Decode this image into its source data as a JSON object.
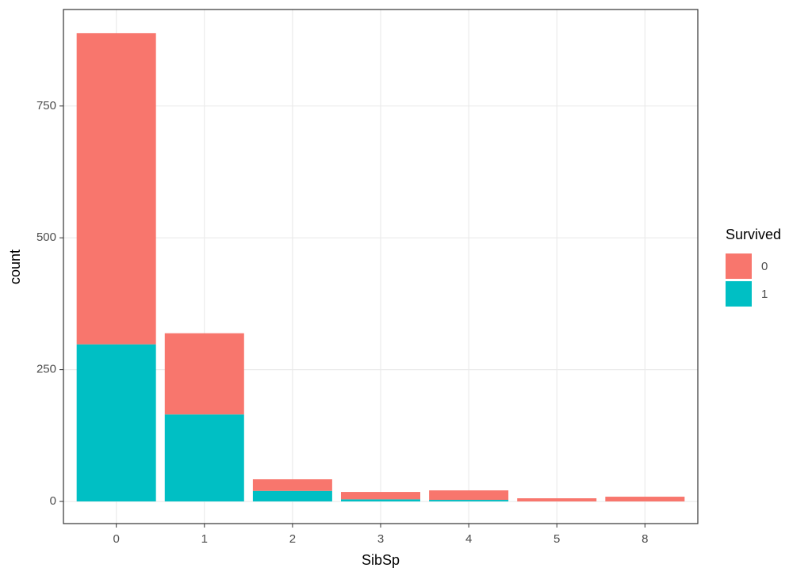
{
  "chart_data": {
    "type": "stacked_bar",
    "x_label": "SibSp",
    "y_label": "count",
    "legend_title": "Survived",
    "categories": [
      "0",
      "1",
      "2",
      "3",
      "4",
      "5",
      "8"
    ],
    "series": [
      {
        "name": "0",
        "color": "#F8766D",
        "values": [
          590,
          154,
          22,
          14,
          18,
          6,
          9
        ]
      },
      {
        "name": "1",
        "color": "#00BFC4",
        "values": [
          298,
          165,
          20,
          4,
          3,
          0,
          0
        ]
      }
    ],
    "stack_order": [
      1,
      0
    ],
    "ylim": [
      -42,
      933
    ],
    "yticks": [
      0,
      250,
      500,
      750
    ],
    "grid": true,
    "legend": "right"
  }
}
